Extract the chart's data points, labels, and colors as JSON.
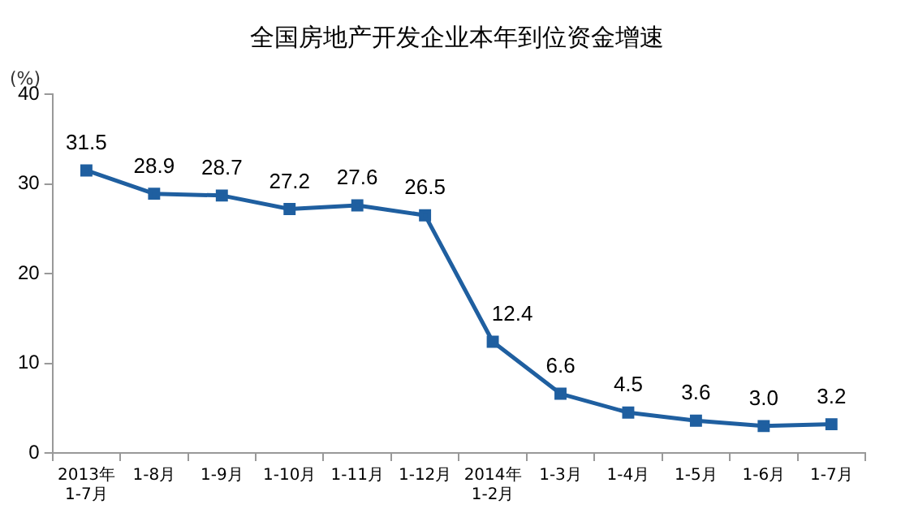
{
  "chart_data": {
    "type": "line",
    "title": "全国房地产开发企业本年到位资金增速",
    "ylabel": "(%)",
    "categories": [
      "2013年\n1-7月",
      "1-8月",
      "1-9月",
      "1-10月",
      "1-11月",
      "1-12月",
      "2014年\n1-2月",
      "1-3月",
      "1-4月",
      "1-5月",
      "1-6月",
      "1-7月"
    ],
    "series": [
      {
        "color": "#1f5fa0",
        "values": [
          31.5,
          28.9,
          28.7,
          27.2,
          27.6,
          26.5,
          12.4,
          6.6,
          4.5,
          3.6,
          3.0,
          3.2
        ],
        "value_labels": [
          "31.5",
          "28.9",
          "28.7",
          "27.2",
          "27.6",
          "26.5",
          "12.4",
          "6.6",
          "4.5",
          "3.6",
          "3.0",
          "3.2"
        ]
      }
    ],
    "ylim": [
      0,
      40
    ],
    "yticks": [
      0,
      10,
      20,
      30,
      40
    ],
    "grid": false,
    "legend": false,
    "marker": "square",
    "line_style": "solid"
  }
}
